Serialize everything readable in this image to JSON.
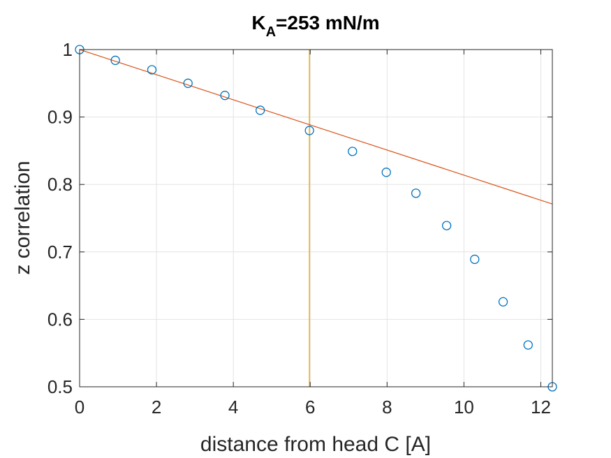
{
  "chart_data": {
    "type": "scatter",
    "title_main": "K",
    "title_sub": "A",
    "title_rest": "=253 mN/m",
    "xlabel": "distance from head C [A]",
    "ylabel": "z correlation",
    "xlim": [
      0,
      12.3
    ],
    "ylim": [
      0.5,
      1.0
    ],
    "xticks": [
      0,
      2,
      4,
      6,
      8,
      10,
      12
    ],
    "yticks": [
      0.5,
      0.6,
      0.7,
      0.8,
      0.9,
      1.0
    ],
    "xtick_labels": [
      "0",
      "2",
      "4",
      "6",
      "8",
      "10",
      "12"
    ],
    "ytick_labels": [
      "0.5",
      "0.6",
      "0.7",
      "0.8",
      "0.9",
      "1"
    ],
    "grid": true,
    "series": [
      {
        "kind": "points",
        "marker": "circle-open",
        "color": "#0072BD",
        "x": [
          0,
          0.93,
          1.88,
          2.82,
          3.78,
          4.7,
          5.98,
          7.1,
          7.98,
          8.75,
          9.55,
          10.28,
          11.02,
          11.67,
          12.3
        ],
        "y": [
          1.0,
          0.984,
          0.97,
          0.95,
          0.932,
          0.91,
          0.88,
          0.849,
          0.818,
          0.787,
          0.739,
          0.689,
          0.626,
          0.562,
          0.5
        ]
      },
      {
        "kind": "fit-line",
        "color": "#D95319",
        "x": [
          0,
          12.3
        ],
        "y": [
          1.0,
          0.771
        ]
      },
      {
        "kind": "vertical-line",
        "color": "#EDB120",
        "x": 5.98
      }
    ]
  }
}
